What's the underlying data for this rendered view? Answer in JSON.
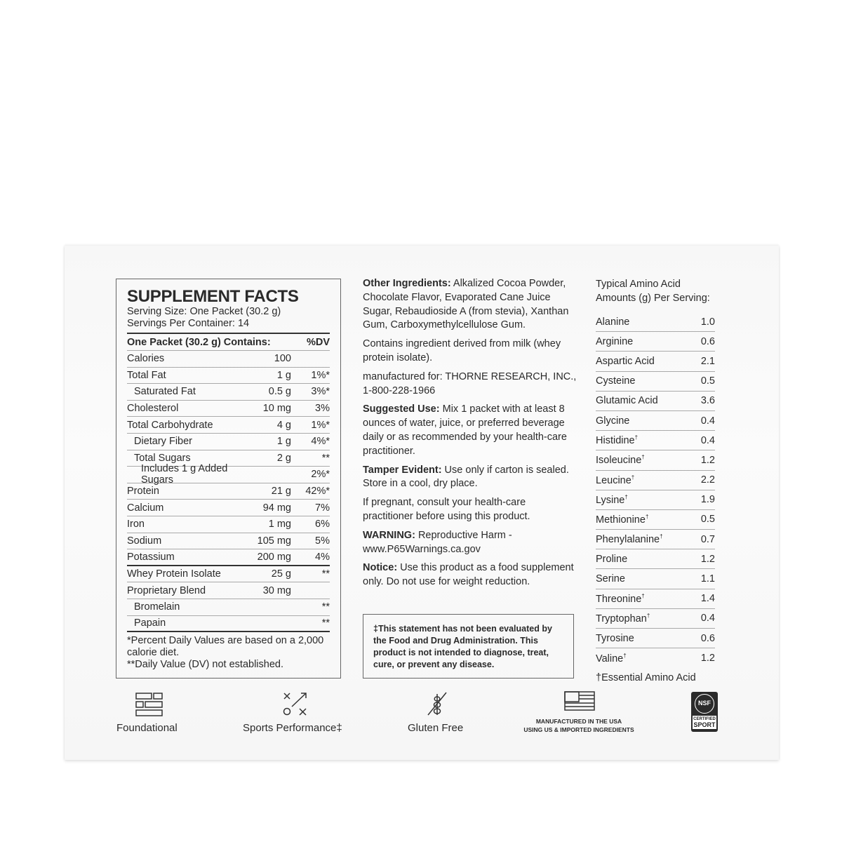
{
  "supplement_facts": {
    "title": "SUPPLEMENT FACTS",
    "serving_size": "Serving Size: One Packet (30.2 g)",
    "servings": "Servings Per Container: 14",
    "header": {
      "name": "One Packet (30.2 g) Contains:",
      "dv": "%DV"
    },
    "rows": [
      {
        "name": "Calories",
        "amount": "100",
        "dv": ""
      },
      {
        "name": "Total Fat",
        "amount": "1 g",
        "dv": "1%*"
      },
      {
        "name": "Saturated Fat",
        "amount": "0.5 g",
        "dv": "3%*",
        "indent": 1
      },
      {
        "name": "Cholesterol",
        "amount": "10 mg",
        "dv": "3%"
      },
      {
        "name": "Total Carbohydrate",
        "amount": "4 g",
        "dv": "1%*"
      },
      {
        "name": "Dietary Fiber",
        "amount": "1 g",
        "dv": "4%*",
        "indent": 1
      },
      {
        "name": "Total Sugars",
        "amount": "2 g",
        "dv": "**",
        "indent": 1
      },
      {
        "name": "Includes 1 g Added Sugars",
        "amount": "",
        "dv": "2%*",
        "indent": 2
      },
      {
        "name": "Protein",
        "amount": "21 g",
        "dv": "42%*"
      },
      {
        "name": "Calcium",
        "amount": "94 mg",
        "dv": "7%"
      },
      {
        "name": "Iron",
        "amount": "1 mg",
        "dv": "6%"
      },
      {
        "name": "Sodium",
        "amount": "105 mg",
        "dv": "5%"
      },
      {
        "name": "Potassium",
        "amount": "200 mg",
        "dv": "4%",
        "thick": true
      },
      {
        "name": "Whey Protein Isolate",
        "amount": "25 g",
        "dv": "**"
      },
      {
        "name": "Proprietary Blend",
        "amount": "30 mg",
        "dv": ""
      },
      {
        "name": "Bromelain",
        "amount": "",
        "dv": "**",
        "indent": 1
      },
      {
        "name": "Papain",
        "amount": "",
        "dv": "**",
        "indent": 1,
        "last": true
      }
    ],
    "footnote1": "*Percent Daily Values are based on a 2,000 calorie diet.",
    "footnote2": "**Daily Value (DV) not established."
  },
  "middle": [
    {
      "label": "Other Ingredients:",
      "text": " Alkalized Cocoa Powder, Chocolate Flavor, Evaporated Cane Juice Sugar, Rebaudioside A (from stevia), Xanthan Gum, Carboxymethylcellulose Gum."
    },
    {
      "label": "",
      "text": "Contains ingredient derived from milk (whey protein isolate)."
    },
    {
      "label": "",
      "text": "manufactured for: THORNE RESEARCH, INC., 1-800-228-1966"
    },
    {
      "label": "Suggested Use:",
      "text": " Mix 1 packet with at least 8 ounces of water, juice, or preferred beverage daily or as recommended by your health-care practitioner."
    },
    {
      "label": "Tamper Evident:",
      "text": " Use only if carton is sealed. Store in a cool, dry place."
    },
    {
      "label": "",
      "text": "If pregnant, consult your health-care practitioner before using this product."
    },
    {
      "label": "WARNING:",
      "text": " Reproductive Harm - www.P65Warnings.ca.gov"
    },
    {
      "label": "Notice:",
      "text": " Use this product as a food supplement only. Do not use for weight reduction."
    }
  ],
  "disclaimer": "‡This statement has not been evaluated by the Food and Drug Administration. This product is not intended to diagnose, treat, cure, or prevent any disease.",
  "amino": {
    "title": "Typical Amino Acid Amounts (g) Per Serving:",
    "rows": [
      {
        "name": "Alanine",
        "value": "1.0",
        "essential": false
      },
      {
        "name": "Arginine",
        "value": "0.6",
        "essential": false
      },
      {
        "name": "Aspartic Acid",
        "value": "2.1",
        "essential": false
      },
      {
        "name": "Cysteine",
        "value": "0.5",
        "essential": false
      },
      {
        "name": "Glutamic Acid",
        "value": "3.6",
        "essential": false
      },
      {
        "name": "Glycine",
        "value": "0.4",
        "essential": false
      },
      {
        "name": "Histidine",
        "value": "0.4",
        "essential": true
      },
      {
        "name": "Isoleucine",
        "value": "1.2",
        "essential": true
      },
      {
        "name": "Leucine",
        "value": "2.2",
        "essential": true
      },
      {
        "name": "Lysine",
        "value": "1.9",
        "essential": true
      },
      {
        "name": "Methionine",
        "value": "0.5",
        "essential": true
      },
      {
        "name": "Phenylalanine",
        "value": "0.7",
        "essential": true
      },
      {
        "name": "Proline",
        "value": "1.2",
        "essential": false
      },
      {
        "name": "Serine",
        "value": "1.1",
        "essential": false
      },
      {
        "name": "Threonine",
        "value": "1.4",
        "essential": true
      },
      {
        "name": "Tryptophan",
        "value": "0.4",
        "essential": true
      },
      {
        "name": "Tyrosine",
        "value": "0.6",
        "essential": false
      },
      {
        "name": "Valine",
        "value": "1.2",
        "essential": true
      }
    ],
    "footnote": "†Essential Amino Acid"
  },
  "badges": {
    "foundational": "Foundational",
    "sports": "Sports Performance‡",
    "gluten": "Gluten Free",
    "usa_line1": "MANUFACTURED IN THE USA",
    "usa_line2": "USING US & IMPORTED INGREDIENTS",
    "nsf_logo": "NSF",
    "nsf_text1": "CERTIFIED",
    "nsf_text2": "SPORT"
  }
}
